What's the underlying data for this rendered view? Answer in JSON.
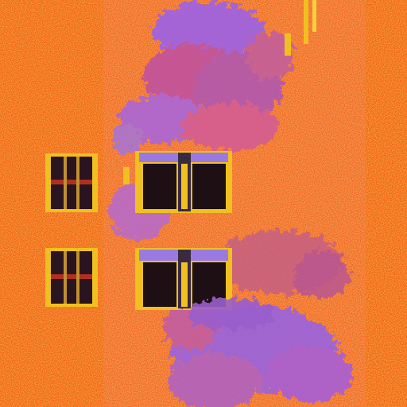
{
  "scene": {
    "description_colors": {
      "wall": "#f5620e",
      "wall_dark": "#e8500a",
      "speckle": "#f2b21e",
      "foliage_purple": "#9b5fd6",
      "foliage_pink": "#d4589a",
      "window_glass": "#2a1420",
      "window_frame": "#f0c020",
      "window_top": "#9a7ae0"
    }
  }
}
